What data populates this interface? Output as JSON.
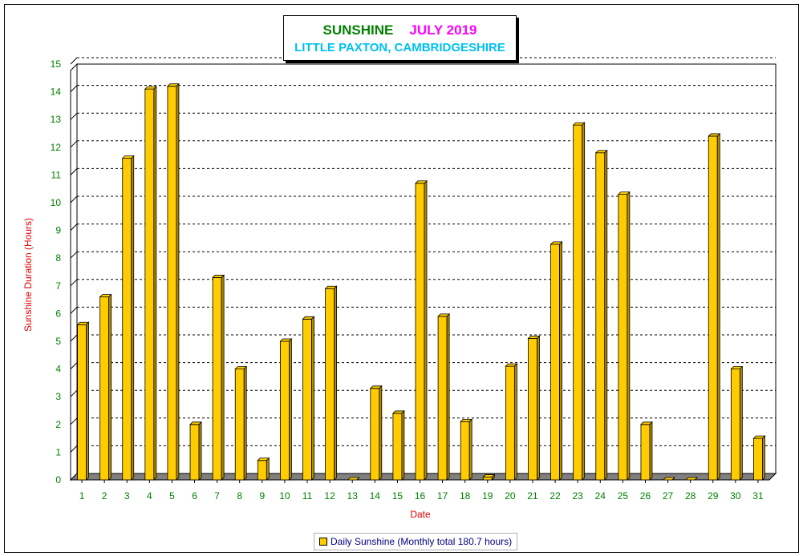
{
  "title": {
    "main": "SUNSHINE",
    "month": "JULY 2019",
    "subtitle": "LITTLE PAXTON, CAMBRIDGESHIRE"
  },
  "legend": {
    "label": "Daily Sunshine (Monthly total 180.7 hours)"
  },
  "colors": {
    "bar": "#ffcc00",
    "axis_label": "#e00000",
    "tick_label": "#008000",
    "title_main": "#008000",
    "title_month": "#ff00ff",
    "subtitle": "#00c0f0"
  },
  "chart_data": {
    "type": "bar",
    "title": "SUNSHINE JULY 2019",
    "subtitle": "LITTLE PAXTON, CAMBRIDGESHIRE",
    "xlabel": "Date",
    "ylabel": "Sunshine Duration (Hours)",
    "ylim": [
      0,
      15
    ],
    "yticks": [
      0,
      1,
      2,
      3,
      4,
      5,
      6,
      7,
      8,
      9,
      10,
      11,
      12,
      13,
      14,
      15
    ],
    "grid": true,
    "legend_position": "bottom-center",
    "categories": [
      "1",
      "2",
      "3",
      "4",
      "5",
      "6",
      "7",
      "8",
      "9",
      "10",
      "11",
      "12",
      "13",
      "14",
      "15",
      "16",
      "17",
      "18",
      "19",
      "20",
      "21",
      "22",
      "23",
      "24",
      "25",
      "26",
      "27",
      "28",
      "29",
      "30",
      "31"
    ],
    "series": [
      {
        "name": "Daily Sunshine (Monthly total 180.7 hours)",
        "values": [
          5.6,
          6.6,
          11.6,
          14.1,
          14.2,
          2.0,
          7.3,
          4.0,
          0.7,
          5.0,
          5.8,
          6.9,
          0.0,
          3.3,
          2.4,
          10.7,
          5.9,
          2.1,
          0.1,
          4.1,
          5.1,
          8.5,
          12.8,
          11.8,
          10.3,
          2.0,
          0.0,
          0.0,
          12.4,
          4.0,
          1.5
        ]
      }
    ]
  }
}
